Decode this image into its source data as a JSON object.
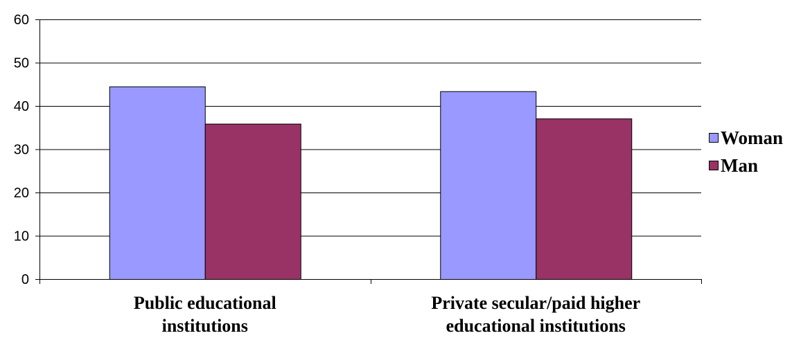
{
  "chart_data": {
    "type": "bar",
    "categories": [
      [
        "Public educational",
        "institutions"
      ],
      [
        "Private secular/paid higher",
        "educational institutions"
      ]
    ],
    "series": [
      {
        "name": "Woman",
        "color": "#9999ff",
        "values": [
          44.5,
          43.4
        ]
      },
      {
        "name": "Man",
        "color": "#993366",
        "values": [
          35.9,
          37.1
        ]
      }
    ],
    "ylim": [
      0,
      60
    ],
    "yticks": [
      0,
      10,
      20,
      30,
      40,
      50,
      60
    ],
    "grid": true,
    "legend": "right"
  }
}
